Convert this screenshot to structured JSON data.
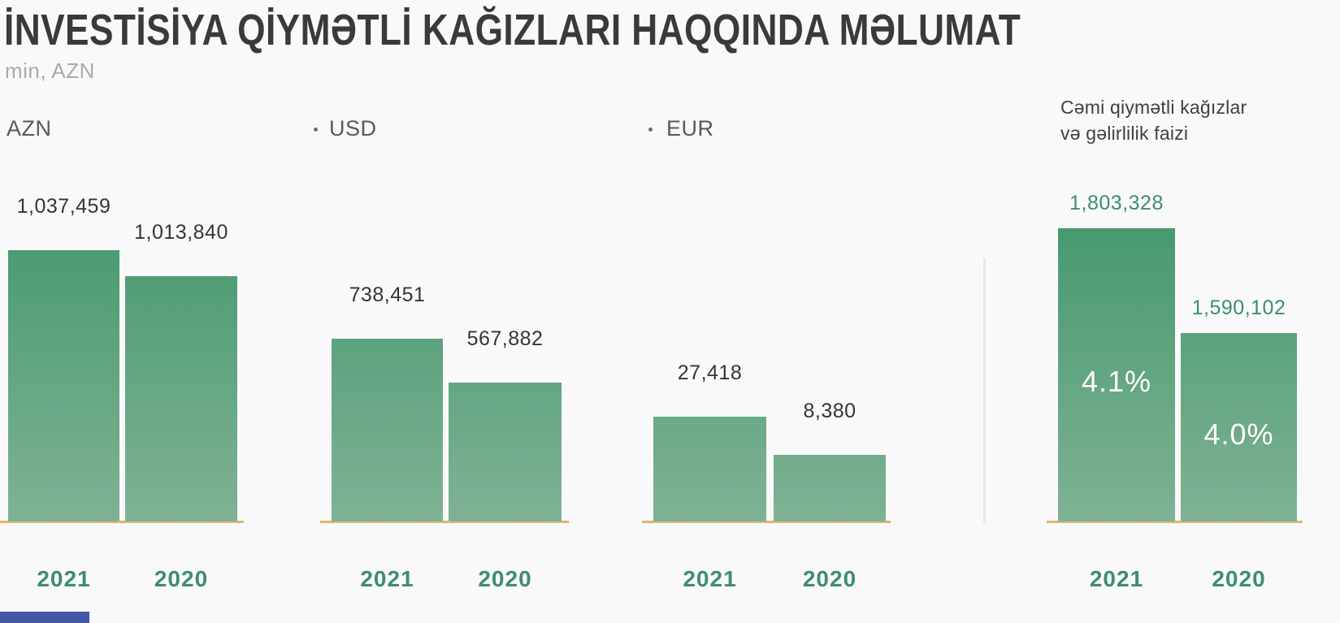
{
  "page": {
    "title": "İNVESTİSİYA QİYMƏTLİ KAĞIZLARI HAQQINDA MƏLUMAT",
    "subtitle": "min, AZN"
  },
  "colors": {
    "background": "#f9f9fb",
    "title_text": "#3a3a3c",
    "subtitle_text": "#a9aaac",
    "group_label_text": "#58595b",
    "bar_gradient_top": "#479970",
    "bar_gradient_bottom": "#7fb294",
    "baseline": "#e0b765",
    "green_text": "#3d8e6a",
    "percent_text": "#ffffff",
    "divider": "#e8e8ea",
    "next_section_blue": "#4458a3"
  },
  "chart_data": {
    "type": "bar",
    "title": "İNVESTİSİYA QİYMƏTLİ KAĞIZLARI HAQQINDA MƏLUMAT",
    "unit_label": "min, AZN",
    "categories": [
      "2021",
      "2020"
    ],
    "grid": false,
    "legend_position": "none",
    "groups": [
      {
        "label": "AZN",
        "values": [
          1037459,
          1013840
        ],
        "value_labels": [
          "1,037,459",
          "1,013,840"
        ]
      },
      {
        "label": "USD",
        "bullet": true,
        "values": [
          738451,
          567882
        ],
        "value_labels": [
          "738,451",
          "567,882"
        ]
      },
      {
        "label": "EUR",
        "bullet": true,
        "values": [
          27418,
          8380
        ],
        "value_labels": [
          "27,418",
          "8,380"
        ]
      },
      {
        "label": "Cəmi qiymətli kağızlar və gəlirlilik faizi",
        "label_lines": [
          "Cəmi qiymətli kağızlar",
          "və gəlirlilik faizi"
        ],
        "values": [
          1803328,
          1590102
        ],
        "value_labels": [
          "1,803,328",
          "1,590,102"
        ],
        "percent_labels": [
          "4.1%",
          "4.0%"
        ],
        "accent": true
      }
    ]
  }
}
